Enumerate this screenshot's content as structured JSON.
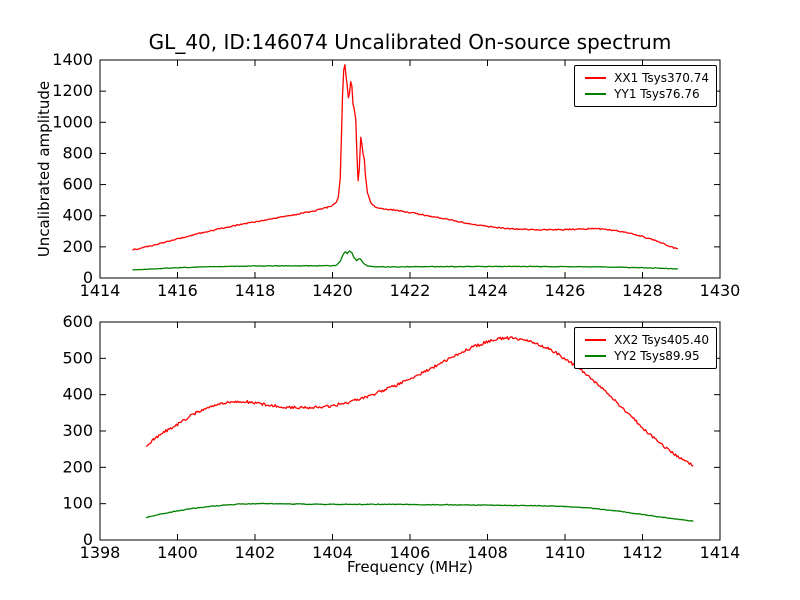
{
  "figure": {
    "title": "GL_40, ID:146074 Uncalibrated On-source spectrum",
    "xlabel": "Frequency (MHz)",
    "ylabel": "Uncalibrated amplitude",
    "background": "#ffffff",
    "axis_color": "#000000"
  },
  "chart_data": [
    {
      "type": "line",
      "subplot": "top",
      "xlim": [
        1414,
        1430
      ],
      "ylim": [
        0,
        1400
      ],
      "xticks": [
        "1414",
        "1416",
        "1418",
        "1420",
        "1422",
        "1424",
        "1426",
        "1428",
        "1430"
      ],
      "xtick_values": [
        1414,
        1416,
        1418,
        1420,
        1422,
        1424,
        1426,
        1428,
        1430
      ],
      "yticks": [
        "0",
        "200",
        "400",
        "600",
        "800",
        "1000",
        "1200",
        "1400"
      ],
      "ytick_values": [
        0,
        200,
        400,
        600,
        800,
        1000,
        1200,
        1400
      ],
      "grid": false,
      "legend_position": "upper right",
      "series": [
        {
          "name": "XX1",
          "label": "XX1 Tsys370.74",
          "color": "#ff0000",
          "noise": 4,
          "points": [
            [
              1414.85,
              180
            ],
            [
              1415.2,
              200
            ],
            [
              1415.6,
              225
            ],
            [
              1416.0,
              250
            ],
            [
              1416.5,
              283
            ],
            [
              1417.0,
              312
            ],
            [
              1417.5,
              338
            ],
            [
              1418.0,
              360
            ],
            [
              1418.5,
              383
            ],
            [
              1419.0,
              405
            ],
            [
              1419.5,
              430
            ],
            [
              1419.8,
              448
            ],
            [
              1420.0,
              465
            ],
            [
              1420.05,
              478
            ],
            [
              1420.1,
              490
            ],
            [
              1420.15,
              520
            ],
            [
              1420.2,
              640
            ],
            [
              1420.23,
              900
            ],
            [
              1420.26,
              1180
            ],
            [
              1420.29,
              1340
            ],
            [
              1420.32,
              1370
            ],
            [
              1420.35,
              1300
            ],
            [
              1420.38,
              1235
            ],
            [
              1420.41,
              1155
            ],
            [
              1420.44,
              1190
            ],
            [
              1420.47,
              1260
            ],
            [
              1420.5,
              1230
            ],
            [
              1420.53,
              1120
            ],
            [
              1420.56,
              1085
            ],
            [
              1420.6,
              1020
            ],
            [
              1420.63,
              800
            ],
            [
              1420.66,
              625
            ],
            [
              1420.69,
              700
            ],
            [
              1420.73,
              905
            ],
            [
              1420.76,
              860
            ],
            [
              1420.79,
              790
            ],
            [
              1420.82,
              770
            ],
            [
              1420.85,
              660
            ],
            [
              1420.9,
              545
            ],
            [
              1421.0,
              480
            ],
            [
              1421.1,
              455
            ],
            [
              1421.3,
              445
            ],
            [
              1421.6,
              436
            ],
            [
              1422.0,
              420
            ],
            [
              1422.5,
              398
            ],
            [
              1423.0,
              375
            ],
            [
              1423.5,
              350
            ],
            [
              1424.0,
              331
            ],
            [
              1424.5,
              318
            ],
            [
              1425.0,
              312
            ],
            [
              1425.5,
              309
            ],
            [
              1426.0,
              311
            ],
            [
              1426.3,
              314
            ],
            [
              1426.7,
              317
            ],
            [
              1427.0,
              314
            ],
            [
              1427.3,
              305
            ],
            [
              1427.7,
              287
            ],
            [
              1428.0,
              267
            ],
            [
              1428.4,
              235
            ],
            [
              1428.9,
              185
            ]
          ]
        },
        {
          "name": "YY1",
          "label": "YY1 Tsys76.76",
          "color": "#008000",
          "noise": 2,
          "points": [
            [
              1414.85,
              52
            ],
            [
              1415.5,
              60
            ],
            [
              1416.0,
              66
            ],
            [
              1416.5,
              70
            ],
            [
              1417.0,
              73
            ],
            [
              1417.5,
              75
            ],
            [
              1418.0,
              77
            ],
            [
              1419.0,
              78
            ],
            [
              1419.5,
              78
            ],
            [
              1420.0,
              79
            ],
            [
              1420.1,
              82
            ],
            [
              1420.2,
              105
            ],
            [
              1420.27,
              150
            ],
            [
              1420.33,
              168
            ],
            [
              1420.38,
              158
            ],
            [
              1420.44,
              172
            ],
            [
              1420.5,
              162
            ],
            [
              1420.56,
              130
            ],
            [
              1420.62,
              112
            ],
            [
              1420.68,
              125
            ],
            [
              1420.73,
              120
            ],
            [
              1420.8,
              95
            ],
            [
              1420.9,
              78
            ],
            [
              1421.1,
              72
            ],
            [
              1421.5,
              71
            ],
            [
              1422.0,
              72
            ],
            [
              1423.0,
              73
            ],
            [
              1424.0,
              74
            ],
            [
              1425.0,
              74
            ],
            [
              1426.0,
              73
            ],
            [
              1427.0,
              71
            ],
            [
              1427.5,
              69
            ],
            [
              1428.0,
              66
            ],
            [
              1428.5,
              62
            ],
            [
              1428.9,
              58
            ]
          ]
        }
      ]
    },
    {
      "type": "line",
      "subplot": "bottom",
      "xlim": [
        1398,
        1414
      ],
      "ylim": [
        0,
        600
      ],
      "xticks": [
        "1398",
        "1400",
        "1402",
        "1404",
        "1406",
        "1408",
        "1410",
        "1412",
        "1414"
      ],
      "xtick_values": [
        1398,
        1400,
        1402,
        1404,
        1406,
        1408,
        1410,
        1412,
        1414
      ],
      "yticks": [
        "0",
        "100",
        "200",
        "300",
        "400",
        "500",
        "600"
      ],
      "ytick_values": [
        0,
        100,
        200,
        300,
        400,
        500,
        600
      ],
      "grid": false,
      "legend_position": "upper right",
      "series": [
        {
          "name": "XX2",
          "label": "XX2 Tsys405.40",
          "color": "#ff0000",
          "noise": 4,
          "points": [
            [
              1399.2,
              258
            ],
            [
              1399.4,
              278
            ],
            [
              1399.7,
              300
            ],
            [
              1400.0,
              318
            ],
            [
              1400.3,
              340
            ],
            [
              1400.6,
              357
            ],
            [
              1400.9,
              370
            ],
            [
              1401.2,
              378
            ],
            [
              1401.5,
              381
            ],
            [
              1401.8,
              380
            ],
            [
              1402.1,
              376
            ],
            [
              1402.4,
              371
            ],
            [
              1402.8,
              366
            ],
            [
              1403.2,
              364
            ],
            [
              1403.6,
              365
            ],
            [
              1404.0,
              370
            ],
            [
              1404.4,
              379
            ],
            [
              1404.8,
              391
            ],
            [
              1405.2,
              407
            ],
            [
              1405.6,
              424
            ],
            [
              1406.0,
              444
            ],
            [
              1406.4,
              464
            ],
            [
              1406.8,
              487
            ],
            [
              1407.2,
              510
            ],
            [
              1407.6,
              530
            ],
            [
              1408.0,
              546
            ],
            [
              1408.3,
              554
            ],
            [
              1408.6,
              556
            ],
            [
              1408.9,
              552
            ],
            [
              1409.2,
              543
            ],
            [
              1409.5,
              530
            ],
            [
              1409.8,
              513
            ],
            [
              1410.1,
              492
            ],
            [
              1410.4,
              468
            ],
            [
              1410.7,
              442
            ],
            [
              1411.0,
              413
            ],
            [
              1411.3,
              383
            ],
            [
              1411.6,
              352
            ],
            [
              1411.9,
              320
            ],
            [
              1412.2,
              289
            ],
            [
              1412.5,
              262
            ],
            [
              1412.8,
              238
            ],
            [
              1413.0,
              223
            ],
            [
              1413.3,
              205
            ]
          ]
        },
        {
          "name": "YY2",
          "label": "YY2 Tsys89.95",
          "color": "#008000",
          "noise": 1,
          "points": [
            [
              1399.2,
              62
            ],
            [
              1399.5,
              70
            ],
            [
              1399.8,
              76
            ],
            [
              1400.1,
              82
            ],
            [
              1400.4,
              87
            ],
            [
              1400.8,
              92
            ],
            [
              1401.2,
              96
            ],
            [
              1401.6,
              99
            ],
            [
              1402.0,
              100
            ],
            [
              1402.5,
              100
            ],
            [
              1403.0,
              99
            ],
            [
              1404.0,
              98
            ],
            [
              1405.0,
              98
            ],
            [
              1406.0,
              98
            ],
            [
              1406.3,
              97
            ],
            [
              1407.0,
              97
            ],
            [
              1408.0,
              96
            ],
            [
              1409.0,
              95
            ],
            [
              1409.5,
              94
            ],
            [
              1410.0,
              92
            ],
            [
              1410.5,
              89
            ],
            [
              1411.0,
              84
            ],
            [
              1411.4,
              79
            ],
            [
              1411.8,
              73
            ],
            [
              1412.2,
              67
            ],
            [
              1412.6,
              61
            ],
            [
              1413.0,
              56
            ],
            [
              1413.3,
              52
            ]
          ]
        }
      ]
    }
  ]
}
